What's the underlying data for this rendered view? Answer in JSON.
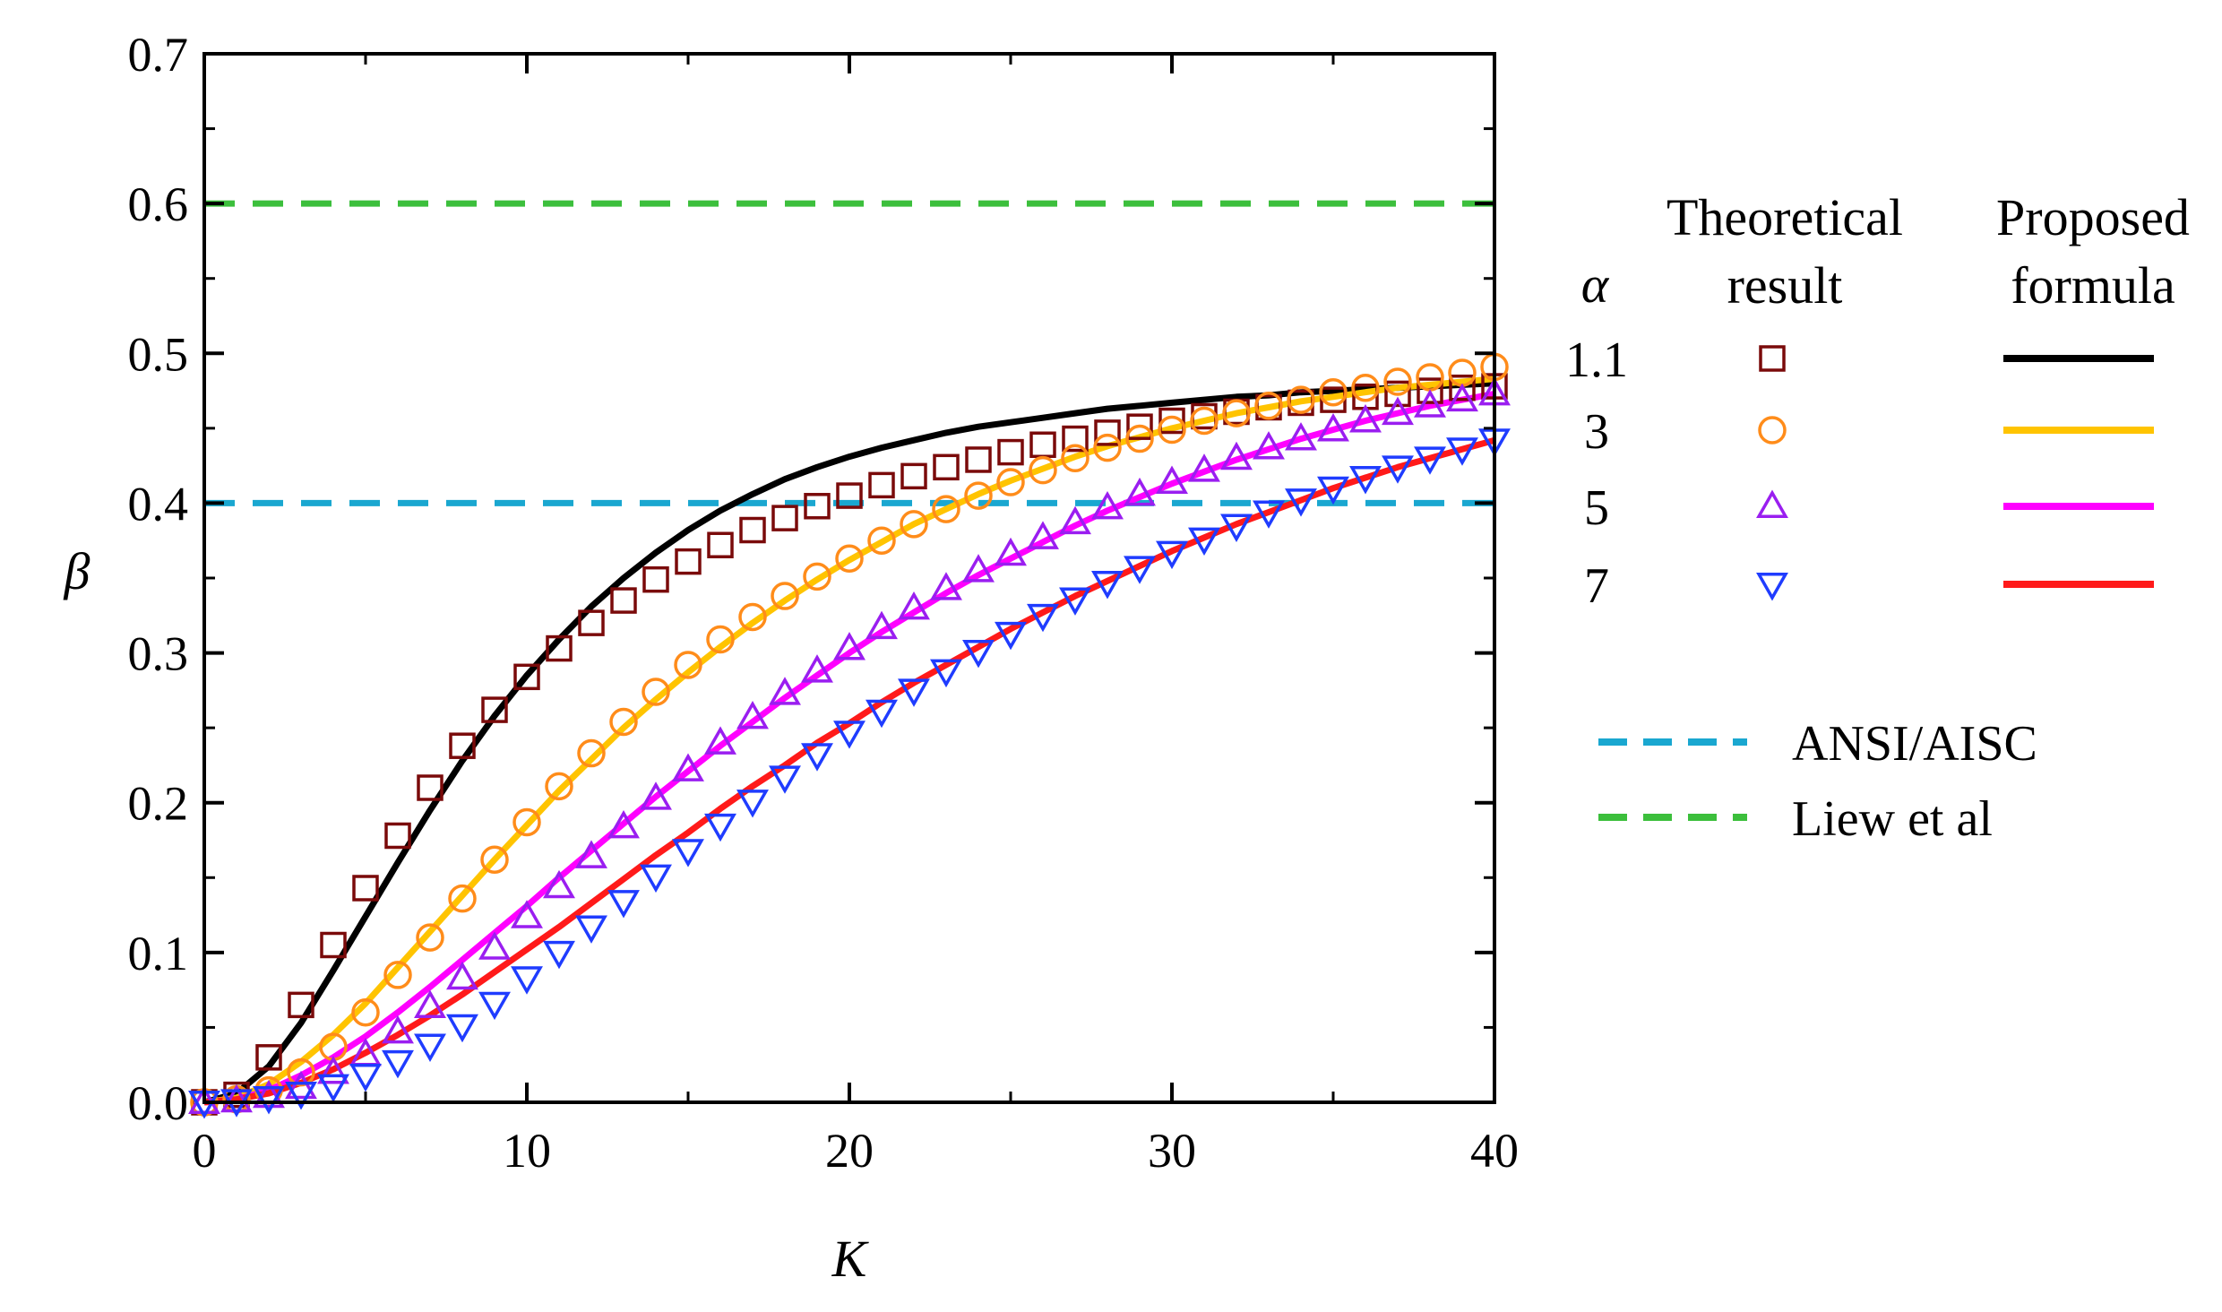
{
  "chart_data": {
    "type": "line",
    "xlabel": "K",
    "ylabel": "β",
    "xlim": [
      0,
      40
    ],
    "ylim": [
      0,
      0.7
    ],
    "xticks": [
      0,
      10,
      20,
      30,
      40
    ],
    "xtick_labels": [
      "0",
      "10",
      "20",
      "30",
      "40"
    ],
    "yticks": [
      0,
      0.1,
      0.2,
      0.3,
      0.4,
      0.5,
      0.6,
      0.7
    ],
    "ytick_labels": [
      "0.0",
      "0.1",
      "0.2",
      "0.3",
      "0.4",
      "0.5",
      "0.6",
      "0.7"
    ],
    "legend": {
      "alpha_header": "α",
      "theoretical_header_line1": "Theoretical",
      "theoretical_header_line2": "result",
      "proposed_header_line1": "Proposed",
      "proposed_header_line2": "formula"
    },
    "series": [
      {
        "name": "1.1",
        "marker": "square",
        "marker_color": "#7a0a0a",
        "line_color": "#000000",
        "x": [
          0,
          1,
          2,
          3,
          4,
          5,
          6,
          7,
          8,
          9,
          10,
          11,
          12,
          13,
          14,
          15,
          16,
          17,
          18,
          19,
          20,
          21,
          22,
          23,
          24,
          25,
          26,
          27,
          28,
          29,
          30,
          31,
          32,
          33,
          34,
          35,
          36,
          37,
          38,
          39,
          40
        ],
        "theoretical": [
          0,
          0.005,
          0.03,
          0.065,
          0.105,
          0.143,
          0.178,
          0.21,
          0.238,
          0.262,
          0.284,
          0.303,
          0.32,
          0.335,
          0.349,
          0.361,
          0.372,
          0.382,
          0.39,
          0.398,
          0.405,
          0.412,
          0.418,
          0.424,
          0.429,
          0.434,
          0.439,
          0.443,
          0.447,
          0.451,
          0.455,
          0.458,
          0.461,
          0.464,
          0.467,
          0.469,
          0.471,
          0.473,
          0.475,
          0.477,
          0.478
        ],
        "formula": [
          0,
          0.006,
          0.024,
          0.053,
          0.088,
          0.124,
          0.16,
          0.195,
          0.228,
          0.258,
          0.285,
          0.309,
          0.331,
          0.35,
          0.367,
          0.382,
          0.395,
          0.406,
          0.416,
          0.424,
          0.431,
          0.437,
          0.442,
          0.447,
          0.451,
          0.454,
          0.457,
          0.46,
          0.463,
          0.465,
          0.467,
          0.469,
          0.471,
          0.472,
          0.474,
          0.475,
          0.476,
          0.477,
          0.478,
          0.479,
          0.48
        ]
      },
      {
        "name": "3",
        "marker": "circle",
        "marker_color": "#ff8c1a",
        "line_color": "#ffc400",
        "x": [
          0,
          1,
          2,
          3,
          4,
          5,
          6,
          7,
          8,
          9,
          10,
          11,
          12,
          13,
          14,
          15,
          16,
          17,
          18,
          19,
          20,
          21,
          22,
          23,
          24,
          25,
          26,
          27,
          28,
          29,
          30,
          31,
          32,
          33,
          34,
          35,
          36,
          37,
          38,
          39,
          40
        ],
        "theoretical": [
          0,
          0.002,
          0.008,
          0.02,
          0.037,
          0.06,
          0.085,
          0.11,
          0.136,
          0.162,
          0.187,
          0.211,
          0.233,
          0.254,
          0.274,
          0.292,
          0.309,
          0.324,
          0.338,
          0.351,
          0.363,
          0.375,
          0.386,
          0.396,
          0.405,
          0.414,
          0.422,
          0.43,
          0.437,
          0.443,
          0.449,
          0.455,
          0.46,
          0.465,
          0.469,
          0.474,
          0.477,
          0.481,
          0.484,
          0.487,
          0.491
        ],
        "formula": [
          0,
          0.003,
          0.012,
          0.027,
          0.045,
          0.066,
          0.09,
          0.114,
          0.138,
          0.162,
          0.185,
          0.208,
          0.229,
          0.25,
          0.269,
          0.287,
          0.304,
          0.32,
          0.335,
          0.349,
          0.362,
          0.374,
          0.386,
          0.396,
          0.406,
          0.415,
          0.423,
          0.431,
          0.438,
          0.444,
          0.45,
          0.455,
          0.46,
          0.464,
          0.468,
          0.471,
          0.474,
          0.477,
          0.479,
          0.481,
          0.483
        ]
      },
      {
        "name": "5",
        "marker": "triangle-up",
        "marker_color": "#9a1ef0",
        "line_color": "#ff00ff",
        "x": [
          0,
          1,
          2,
          3,
          4,
          5,
          6,
          7,
          8,
          9,
          10,
          11,
          12,
          13,
          14,
          15,
          16,
          17,
          18,
          19,
          20,
          21,
          22,
          23,
          24,
          25,
          26,
          27,
          28,
          29,
          30,
          31,
          32,
          33,
          34,
          35,
          36,
          37,
          38,
          39,
          40
        ],
        "theoretical": [
          0,
          0.001,
          0.004,
          0.01,
          0.02,
          0.032,
          0.047,
          0.064,
          0.083,
          0.103,
          0.124,
          0.144,
          0.164,
          0.184,
          0.203,
          0.222,
          0.24,
          0.257,
          0.273,
          0.288,
          0.303,
          0.317,
          0.33,
          0.343,
          0.355,
          0.366,
          0.377,
          0.387,
          0.397,
          0.406,
          0.414,
          0.422,
          0.43,
          0.437,
          0.443,
          0.449,
          0.455,
          0.46,
          0.465,
          0.469,
          0.473
        ],
        "formula": [
          0,
          0.002,
          0.008,
          0.018,
          0.03,
          0.044,
          0.06,
          0.077,
          0.095,
          0.113,
          0.131,
          0.15,
          0.168,
          0.186,
          0.204,
          0.221,
          0.238,
          0.254,
          0.27,
          0.285,
          0.3,
          0.314,
          0.327,
          0.34,
          0.352,
          0.363,
          0.374,
          0.385,
          0.395,
          0.404,
          0.413,
          0.421,
          0.429,
          0.436,
          0.443,
          0.449,
          0.455,
          0.46,
          0.465,
          0.469,
          0.473
        ]
      },
      {
        "name": "7",
        "marker": "triangle-down",
        "marker_color": "#1f3cff",
        "line_color": "#ff1a1a",
        "x": [
          0,
          1,
          2,
          3,
          4,
          5,
          6,
          7,
          8,
          9,
          10,
          11,
          12,
          13,
          14,
          15,
          16,
          17,
          18,
          19,
          20,
          21,
          22,
          23,
          24,
          25,
          26,
          27,
          28,
          29,
          30,
          31,
          32,
          33,
          34,
          35,
          36,
          37,
          38,
          39,
          40
        ],
        "theoretical": [
          0,
          0.001,
          0.003,
          0.006,
          0.011,
          0.018,
          0.027,
          0.038,
          0.051,
          0.066,
          0.083,
          0.1,
          0.117,
          0.134,
          0.151,
          0.168,
          0.185,
          0.201,
          0.217,
          0.232,
          0.247,
          0.261,
          0.275,
          0.288,
          0.301,
          0.313,
          0.325,
          0.336,
          0.347,
          0.357,
          0.367,
          0.376,
          0.385,
          0.394,
          0.402,
          0.41,
          0.417,
          0.424,
          0.43,
          0.436,
          0.442
        ],
        "formula": [
          0,
          0.002,
          0.006,
          0.013,
          0.022,
          0.033,
          0.045,
          0.058,
          0.072,
          0.087,
          0.102,
          0.117,
          0.133,
          0.149,
          0.165,
          0.18,
          0.196,
          0.211,
          0.225,
          0.24,
          0.253,
          0.267,
          0.28,
          0.292,
          0.304,
          0.316,
          0.327,
          0.338,
          0.348,
          0.358,
          0.368,
          0.377,
          0.386,
          0.394,
          0.402,
          0.41,
          0.417,
          0.424,
          0.43,
          0.436,
          0.442
        ]
      }
    ],
    "reference_lines": [
      {
        "name": "ANSI/AISC",
        "y": 0.4,
        "color": "#1aa7d0",
        "style": "dashed"
      },
      {
        "name": "Liew et al",
        "y": 0.6,
        "color": "#3cbf3c",
        "style": "dashed"
      }
    ]
  }
}
